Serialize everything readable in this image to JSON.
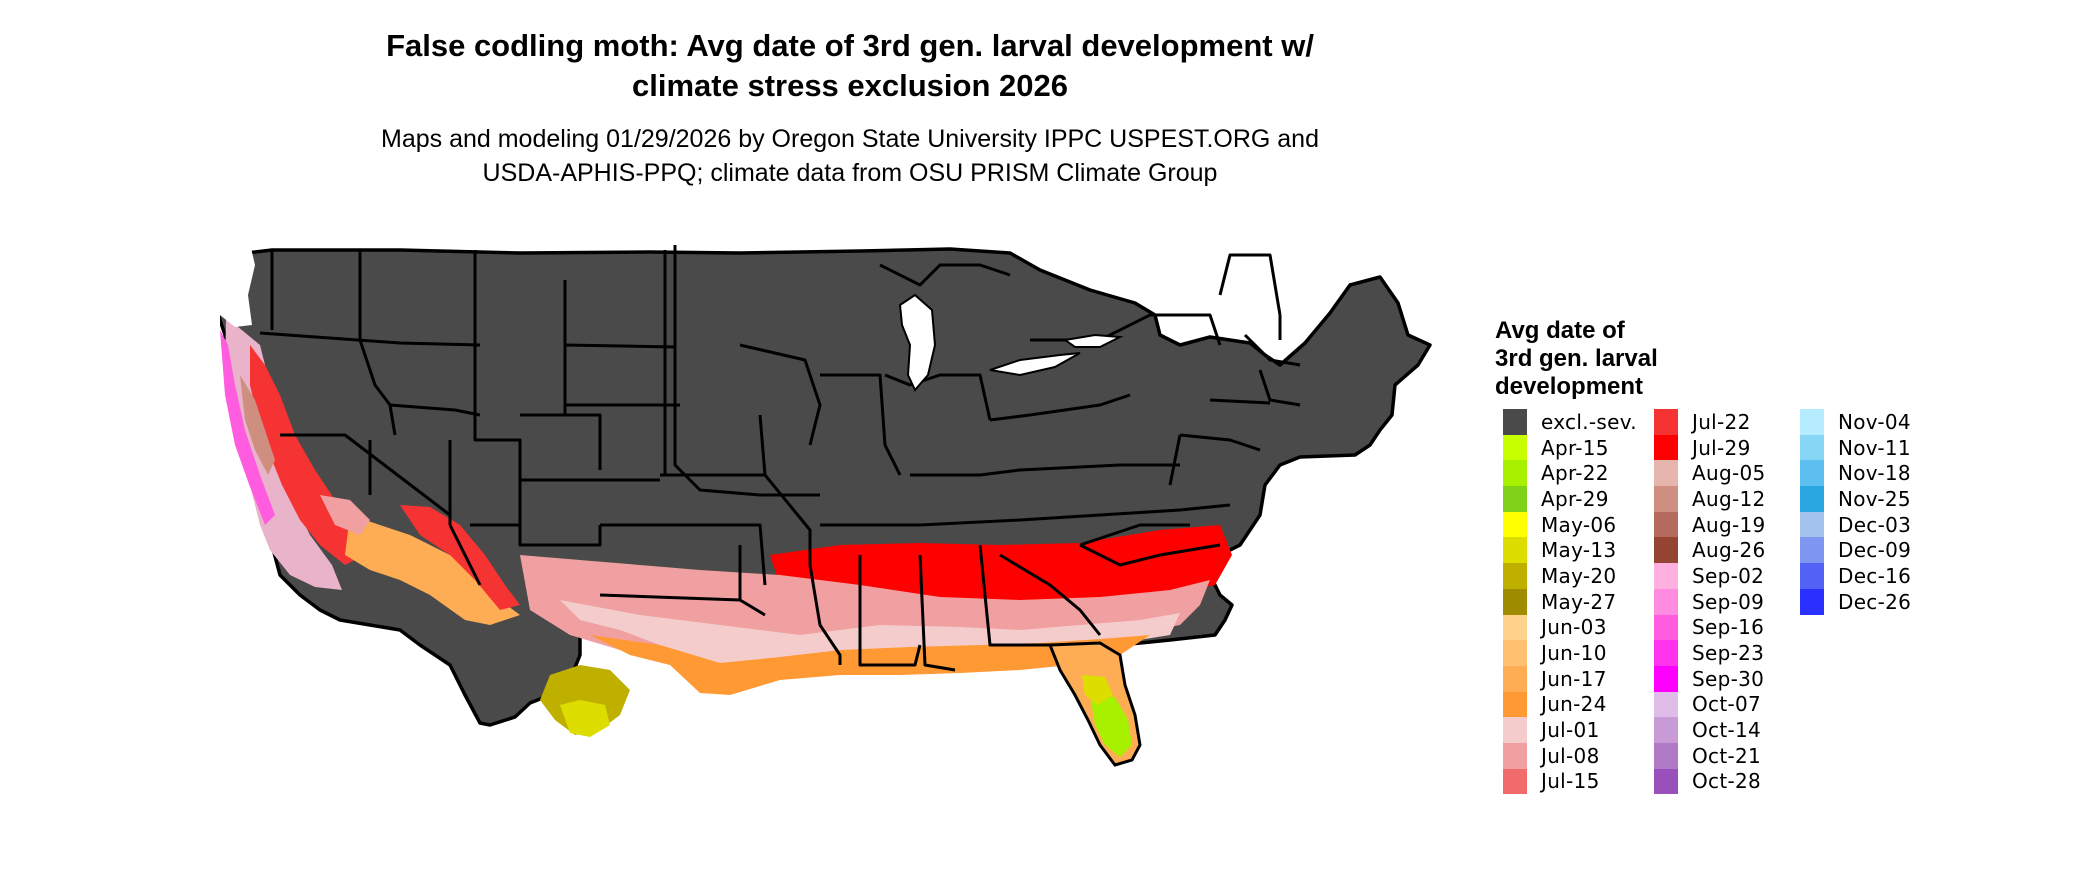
{
  "title_line1": "False codling moth: Avg date of 3rd gen. larval development w/",
  "title_line2": "climate stress exclusion 2026",
  "subtitle_line1": "Maps and modeling 01/29/2026 by Oregon State University IPPC USPEST.ORG and",
  "subtitle_line2": "USDA-APHIS-PPQ; climate data from OSU PRISM Climate Group",
  "legend": {
    "title_lines": [
      "Avg date of",
      "3rd gen. larval",
      "development"
    ],
    "columns": [
      [
        {
          "label": "excl.-sev.",
          "color": "#4a4a4a"
        },
        {
          "label": "Apr-15",
          "color": "#c8ff00"
        },
        {
          "label": "Apr-22",
          "color": "#a6f000"
        },
        {
          "label": "Apr-29",
          "color": "#7fd11a"
        },
        {
          "label": "May-06",
          "color": "#ffff00"
        },
        {
          "label": "May-13",
          "color": "#dddd00"
        },
        {
          "label": "May-20",
          "color": "#bfb000"
        },
        {
          "label": "May-27",
          "color": "#a08c00"
        },
        {
          "label": "Jun-03",
          "color": "#ffd28c"
        },
        {
          "label": "Jun-10",
          "color": "#ffc070"
        },
        {
          "label": "Jun-17",
          "color": "#ffad55"
        },
        {
          "label": "Jun-24",
          "color": "#ff9933"
        },
        {
          "label": "Jul-01",
          "color": "#f5cccc"
        },
        {
          "label": "Jul-08",
          "color": "#f0a0a0"
        },
        {
          "label": "Jul-15",
          "color": "#f26b6b"
        }
      ],
      [
        {
          "label": "Jul-22",
          "color": "#f53333"
        },
        {
          "label": "Jul-29",
          "color": "#ff0000"
        },
        {
          "label": "Aug-05",
          "color": "#e6b6ae"
        },
        {
          "label": "Aug-12",
          "color": "#cf8f80"
        },
        {
          "label": "Aug-19",
          "color": "#b46a5c"
        },
        {
          "label": "Aug-26",
          "color": "#954434"
        },
        {
          "label": "Sep-02",
          "color": "#ffb0e0"
        },
        {
          "label": "Sep-09",
          "color": "#ff8ce0"
        },
        {
          "label": "Sep-16",
          "color": "#ff5ce0"
        },
        {
          "label": "Sep-23",
          "color": "#ff33ee"
        },
        {
          "label": "Sep-30",
          "color": "#ff00ff"
        },
        {
          "label": "Oct-07",
          "color": "#e0bce8"
        },
        {
          "label": "Oct-14",
          "color": "#c89ad6"
        },
        {
          "label": "Oct-21",
          "color": "#b07ac8"
        },
        {
          "label": "Oct-28",
          "color": "#9a50ba"
        }
      ],
      [
        {
          "label": "Nov-04",
          "color": "#b5ecff"
        },
        {
          "label": "Nov-11",
          "color": "#88d6f5"
        },
        {
          "label": "Nov-18",
          "color": "#5cbff0"
        },
        {
          "label": "Nov-25",
          "color": "#2aa6e0"
        },
        {
          "label": "Dec-03",
          "color": "#a4c2ee"
        },
        {
          "label": "Dec-09",
          "color": "#7e96f0"
        },
        {
          "label": "Dec-16",
          "color": "#5262f5"
        },
        {
          "label": "Dec-26",
          "color": "#2a30ff"
        }
      ]
    ]
  },
  "colors": {
    "excluded": "#4a4a4a",
    "border": "#000000",
    "background": "#ffffff"
  }
}
